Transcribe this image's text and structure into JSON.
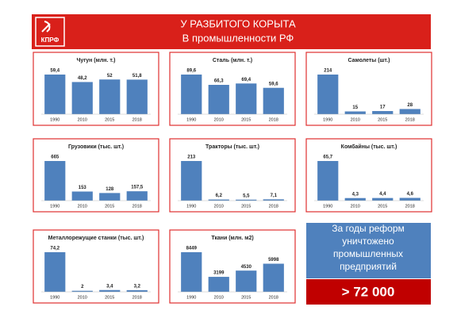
{
  "header": {
    "logo": "КПРФ",
    "title": "У РАЗБИТОГО КОРЫТА",
    "subtitle": "В промышленности РФ"
  },
  "chart_data": [
    {
      "type": "bar",
      "title": "Чугун (млн. т.)",
      "categories": [
        "1990",
        "2010",
        "2015",
        "2018"
      ],
      "values": [
        59.4,
        48.2,
        52,
        51.8
      ],
      "value_labels": [
        "59,4",
        "48,2",
        "52",
        "51,8"
      ],
      "color": "#4f81bd"
    },
    {
      "type": "bar",
      "title": "Сталь (млн. т.)",
      "categories": [
        "1990",
        "2010",
        "2015",
        "2018"
      ],
      "values": [
        89.6,
        66.3,
        69.4,
        59.6
      ],
      "value_labels": [
        "89,6",
        "66,3",
        "69,4",
        "59,6"
      ],
      "color": "#4f81bd"
    },
    {
      "type": "bar",
      "title": "Самолеты (шт.)",
      "categories": [
        "1990",
        "2010",
        "2015",
        "2018"
      ],
      "values": [
        214,
        15,
        17,
        28
      ],
      "color": "#4f81bd"
    },
    {
      "type": "bar",
      "title": "Грузовики (тыс. шт.)",
      "categories": [
        "1990",
        "2010",
        "2015",
        "2018"
      ],
      "values": [
        665,
        153,
        128,
        157.5
      ],
      "value_labels": [
        "665",
        "153",
        "128",
        "157,5"
      ],
      "color": "#4f81bd"
    },
    {
      "type": "bar",
      "title": "Тракторы (тыс. шт.)",
      "categories": [
        "1990",
        "2010",
        "2015",
        "2018"
      ],
      "values": [
        213,
        6.2,
        5.5,
        7.1
      ],
      "value_labels": [
        "213",
        "6,2",
        "5,5",
        "7,1"
      ],
      "color": "#4f81bd"
    },
    {
      "type": "bar",
      "title": "Комбайны (тыс. шт.)",
      "categories": [
        "1990",
        "2010",
        "2015",
        "2018"
      ],
      "values": [
        65.7,
        4.3,
        4.4,
        4.6
      ],
      "value_labels": [
        "65,7",
        "4,3",
        "4,4",
        "4,6"
      ],
      "color": "#4f81bd"
    },
    {
      "type": "bar",
      "title": "Металлорежущие станки (тыс. шт.)",
      "categories": [
        "1990",
        "2010",
        "2015",
        "2018"
      ],
      "values": [
        74.2,
        2,
        3.4,
        3.2
      ],
      "value_labels": [
        "74,2",
        "2",
        "3,4",
        "3,2"
      ],
      "color": "#4f81bd"
    },
    {
      "type": "bar",
      "title": "Ткани (млн. м2)",
      "categories": [
        "1990",
        "2010",
        "2015",
        "2018"
      ],
      "values": [
        8449,
        3199,
        4530,
        5998
      ],
      "color": "#4f81bd"
    }
  ],
  "callout": {
    "lines": [
      "За годы реформ",
      "уничтожено",
      "промышленных",
      "предприятий"
    ],
    "value": "> 72 000"
  }
}
